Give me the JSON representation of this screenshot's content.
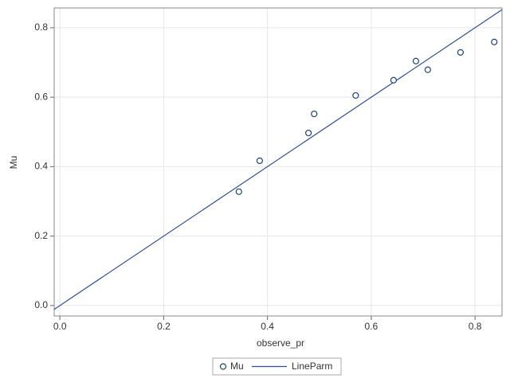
{
  "chart_data": {
    "type": "scatter",
    "x_label": "observe_pr",
    "y_label": "Mu",
    "series": [
      {
        "name": "Mu",
        "color": "#1f3f8f",
        "x": [
          0.345,
          0.385,
          0.479,
          0.49,
          0.57,
          0.643,
          0.686,
          0.709,
          0.772,
          0.837
        ],
        "values": [
          0.328,
          0.417,
          0.497,
          0.552,
          0.605,
          0.649,
          0.704,
          0.679,
          0.729,
          0.759
        ]
      }
    ],
    "line": {
      "name": "LineParm",
      "color": "#2a4ea0",
      "x": [
        -0.011,
        0.852
      ],
      "values": [
        -0.011,
        0.852
      ]
    },
    "xlim": [
      -0.011,
      0.852
    ],
    "ylim": [
      -0.03,
      0.857
    ],
    "xticks": [
      {
        "value": 0,
        "label": "0.0"
      },
      0.2,
      0.4,
      0.6,
      0.8
    ],
    "yticks": [
      {
        "value": 0,
        "label": "0.0"
      },
      0.2,
      0.4,
      0.6,
      0.8
    ],
    "grid": true
  }
}
